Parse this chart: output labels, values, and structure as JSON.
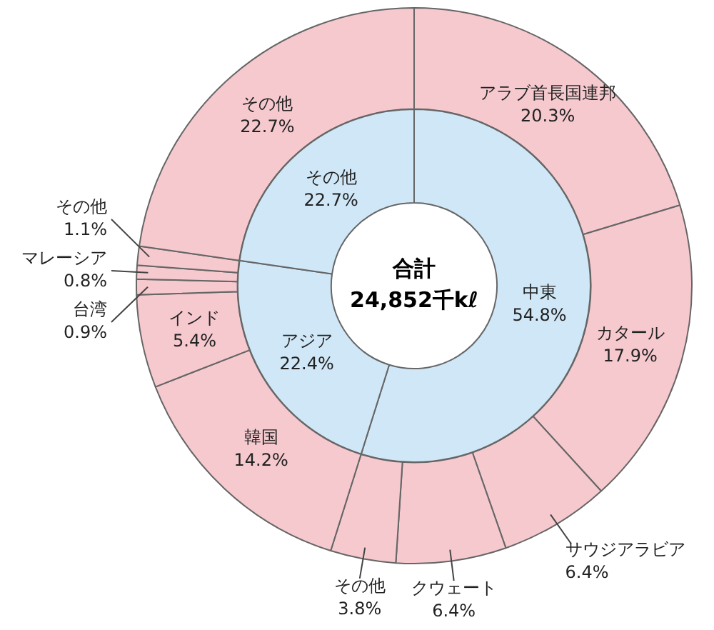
{
  "chart_data": [
    {
      "type": "donut",
      "legend": false,
      "annotations": [
        "合計",
        "24,852千kℓ"
      ],
      "categories": [
        "中東",
        "アジア",
        "その他"
      ],
      "values": [
        54.8,
        22.4,
        22.7
      ],
      "colors": [
        "#cfe7f6",
        "#cfe7f6",
        "#cfe7f6"
      ],
      "value_labels": [
        "54.8%",
        "22.4%",
        "22.7%"
      ]
    },
    {
      "type": "donut",
      "legend": false,
      "categories": [
        "アラブ首長国連邦",
        "カタール",
        "サウジアラビア",
        "クウェート",
        "その他",
        "韓国",
        "インド",
        "台湾",
        "マレーシア",
        "その他",
        "その他"
      ],
      "values": [
        20.3,
        17.9,
        6.4,
        6.4,
        3.8,
        14.2,
        5.4,
        0.9,
        0.8,
        1.1,
        22.7
      ],
      "colors": [
        "#f5c9ce",
        "#f5c9ce",
        "#f5c9ce",
        "#f5c9ce",
        "#f5c9ce",
        "#f5c9ce",
        "#f5c9ce",
        "#f5c9ce",
        "#f5c9ce",
        "#f5c9ce",
        "#f5c9ce"
      ],
      "value_labels": [
        "20.3%",
        "17.9%",
        "6.4%",
        "6.4%",
        "3.8%",
        "14.2%",
        "5.4%",
        "0.9%",
        "0.8%",
        "1.1%",
        "22.7%"
      ]
    }
  ]
}
